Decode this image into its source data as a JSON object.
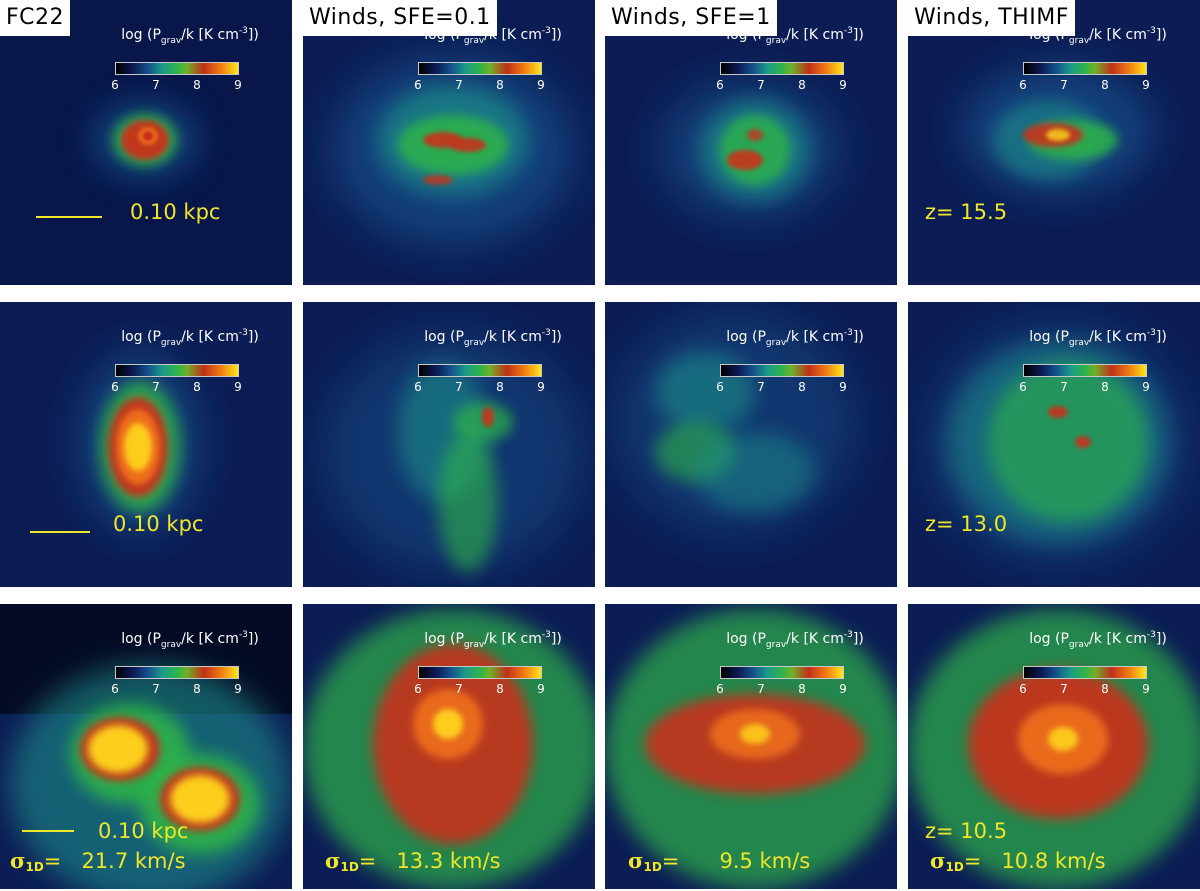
{
  "columns": [
    {
      "title": "FC22"
    },
    {
      "title": "Winds, SFE=0.1"
    },
    {
      "title": "Winds, SFE=1"
    },
    {
      "title": "Winds, THIMF"
    }
  ],
  "colorbar": {
    "label_prefix": "log (P",
    "label_sub": "grav",
    "label_mid": "/k [K cm",
    "label_sup": "-3",
    "label_suffix": "])",
    "ticks": [
      "6",
      "7",
      "8",
      "9"
    ]
  },
  "annotations": {
    "scale_row1": "0.10 kpc",
    "scale_row2": "0.10 kpc",
    "scale_row3": "0.10 kpc",
    "z_row1": "z= 15.5",
    "z_row2": "z= 13.0",
    "z_row3": "z= 10.5",
    "sigma_symbol": "σ",
    "sigma_sub": "1D",
    "sigma_eq": "=",
    "sigma_values": [
      "21.7 km/s",
      "13.3 km/s",
      "9.5 km/s",
      "10.8 km/s"
    ]
  },
  "colors": {
    "annotation": "#f0e628",
    "background": "#0a1a4e",
    "low": "#14508a",
    "mid": "#2fb34a",
    "high": "#c0301a",
    "peak": "#ffe61a"
  }
}
